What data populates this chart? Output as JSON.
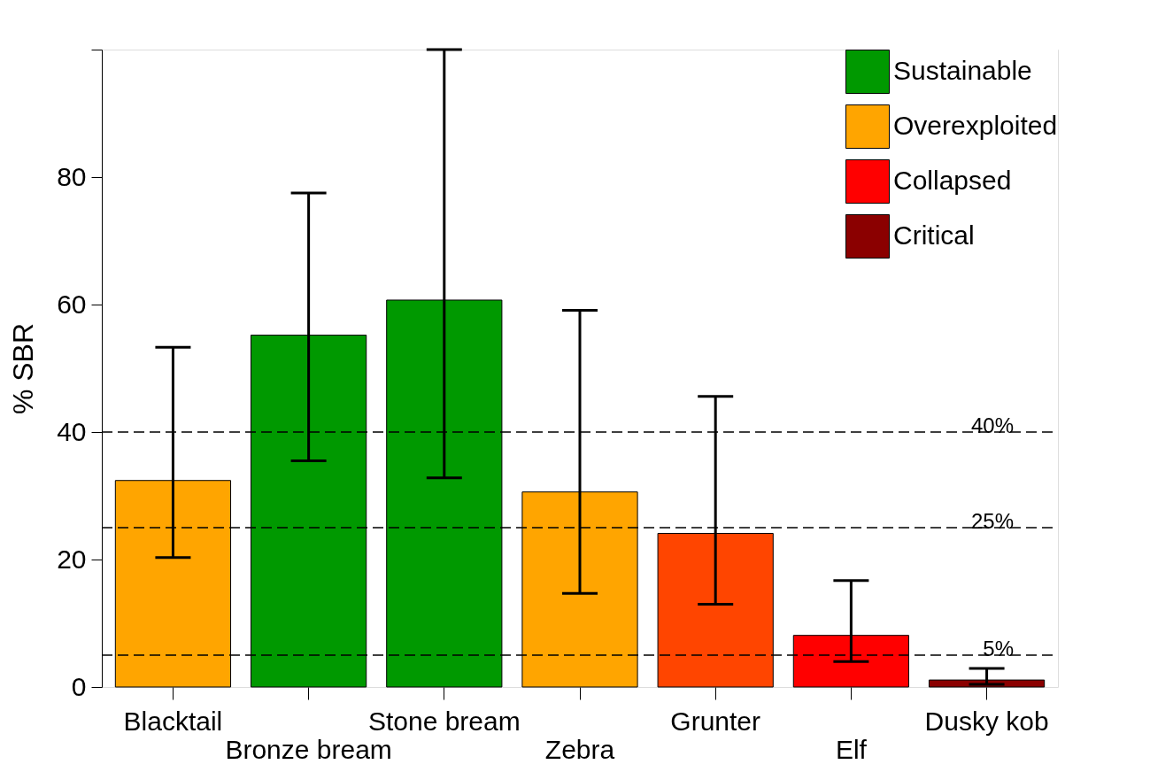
{
  "chart_data": {
    "type": "bar",
    "ylabel": "% SBR",
    "categories": [
      "Blacktail",
      "Bronze bream",
      "Stone bream",
      "Zebra",
      "Grunter",
      "Elf",
      "Dusky kob"
    ],
    "series": [
      {
        "name": "Sustainable",
        "color": "#009900",
        "values": [
          null,
          55.2,
          60.7,
          null,
          null,
          null,
          null
        ],
        "errors": [
          null,
          [
            35.5,
            77.5
          ],
          [
            32.8,
            100
          ],
          null,
          null,
          null,
          null
        ]
      },
      {
        "name": "Overexploited",
        "color": "#ffa500",
        "values": [
          32.4,
          null,
          null,
          30.6,
          null,
          null,
          null
        ],
        "errors": [
          [
            20.3,
            53.3
          ],
          null,
          null,
          [
            14.7,
            59.1
          ],
          null,
          null,
          null
        ]
      },
      {
        "name": "Collapsed",
        "color": "#ff0000",
        "values": [
          null,
          null,
          null,
          null,
          null,
          8.1,
          null
        ],
        "errors": [
          null,
          null,
          null,
          null,
          null,
          [
            4.0,
            16.7
          ],
          null
        ]
      },
      {
        "name": "Critical",
        "color": "#8b0000",
        "values": [
          null,
          null,
          null,
          null,
          null,
          null,
          1.1
        ],
        "errors": [
          null,
          null,
          null,
          null,
          null,
          null,
          [
            0.4,
            2.9
          ]
        ]
      },
      {
        "color": "#ff4500",
        "values": [
          null,
          null,
          null,
          null,
          24.1,
          null,
          null
        ],
        "errors": [
          null,
          null,
          null,
          null,
          [
            13.0,
            45.6
          ],
          null,
          null
        ]
      }
    ],
    "ylim": [
      0,
      100
    ],
    "yticks": [
      0,
      20,
      40,
      60,
      80,
      {
        "value": 100,
        "label": null
      }
    ],
    "ref_lines": [
      {
        "axis": "y",
        "value": 40,
        "label": "40%",
        "line_style": "dashed"
      },
      {
        "axis": "y",
        "value": 25,
        "label": "25%",
        "line_style": "dashed"
      },
      {
        "axis": "y",
        "value": 5,
        "label": "5%",
        "line_style": "dashed"
      }
    ],
    "legend": "top right",
    "grid": false
  }
}
